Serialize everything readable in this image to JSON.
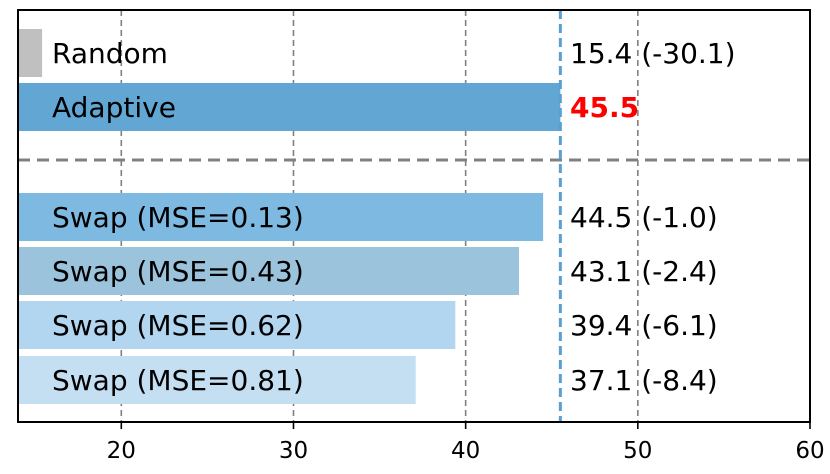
{
  "chart_data": {
    "type": "bar",
    "orientation": "horizontal",
    "categories": [
      "Random",
      "Adaptive",
      "Swap (MSE=0.13)",
      "Swap (MSE=0.43)",
      "Swap (MSE=0.62)",
      "Swap (MSE=0.81)"
    ],
    "values": [
      15.4,
      45.5,
      44.5,
      43.1,
      39.4,
      37.1
    ],
    "value_labels": [
      "15.4 (-30.1)",
      "45.5",
      "44.5 (-1.0)",
      "43.1 (-2.4)",
      "39.4 (-6.1)",
      "37.1 (-8.4)"
    ],
    "highlight_index": 1,
    "bar_colors": [
      "#c0c0c0",
      "#62a6d4",
      "#7db9e0",
      "#9cc3dc",
      "#b2d6ef",
      "#c5dff2"
    ],
    "highlight_color": "#ff0000",
    "reference_line": {
      "value": 45.5,
      "color": "#5a9fd4",
      "style": "dashed"
    },
    "separator_after_index": 1,
    "xlim": [
      14,
      60
    ],
    "xticks": [
      20,
      30,
      40,
      50,
      60
    ],
    "grid": "x-dashed",
    "title": "",
    "xlabel": "",
    "ylabel": ""
  }
}
